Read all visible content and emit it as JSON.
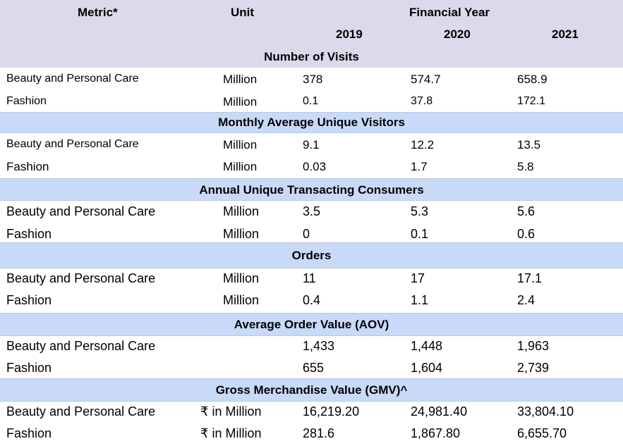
{
  "header": {
    "metric": "Metric*",
    "unit": "Unit",
    "financial_year": "Financial Year",
    "years": [
      "2019",
      "2020",
      "2021"
    ]
  },
  "sections": [
    {
      "title": "Number of Visits",
      "rows": [
        {
          "metric": "Beauty and Personal Care",
          "unit": "Million",
          "values": [
            "378",
            "574.7",
            "658.9"
          ]
        },
        {
          "metric": "Fashion",
          "unit": "Million",
          "values": [
            "0.1",
            "37.8",
            "172.1"
          ]
        }
      ]
    },
    {
      "title": "Monthly Average Unique Visitors",
      "rows": [
        {
          "metric": "Beauty and Personal Care",
          "unit": "Million",
          "values": [
            "9.1",
            "12.2",
            "13.5"
          ]
        },
        {
          "metric": "Fashion",
          "unit": "Million",
          "values": [
            "0.03",
            "1.7",
            "5.8"
          ]
        }
      ]
    },
    {
      "title": "Annual Unique Transacting Consumers",
      "rows": [
        {
          "metric": "Beauty and Personal Care",
          "unit": "Million",
          "values": [
            "3.5",
            "5.3",
            "5.6"
          ]
        },
        {
          "metric": "Fashion",
          "unit": "Million",
          "values": [
            "0",
            "0.1",
            "0.6"
          ]
        }
      ]
    },
    {
      "title": "Orders",
      "rows": [
        {
          "metric": "Beauty and Personal Care",
          "unit": "Million",
          "values": [
            "11",
            "17",
            "17.1"
          ]
        },
        {
          "metric": "Fashion",
          "unit": "Million",
          "values": [
            "0.4",
            "1.1",
            "2.4"
          ]
        }
      ]
    },
    {
      "title": "Average Order Value (AOV)",
      "rows": [
        {
          "metric": "Beauty and Personal Care",
          "unit": "",
          "values": [
            "1,433",
            "1,448",
            "1,963"
          ]
        },
        {
          "metric": "Fashion",
          "unit": "",
          "values": [
            "655",
            "1,604",
            "2,739"
          ]
        }
      ]
    },
    {
      "title": "Gross Merchandise Value (GMV)^",
      "rows": [
        {
          "metric": "Beauty and Personal Care",
          "unit": "₹ in Million",
          "values": [
            "16,219.20",
            "24,981.40",
            "33,804.10"
          ]
        },
        {
          "metric": "Fashion",
          "unit": "₹ in Million",
          "values": [
            "281.6",
            "1,867.80",
            "6,655.70"
          ]
        }
      ]
    }
  ]
}
